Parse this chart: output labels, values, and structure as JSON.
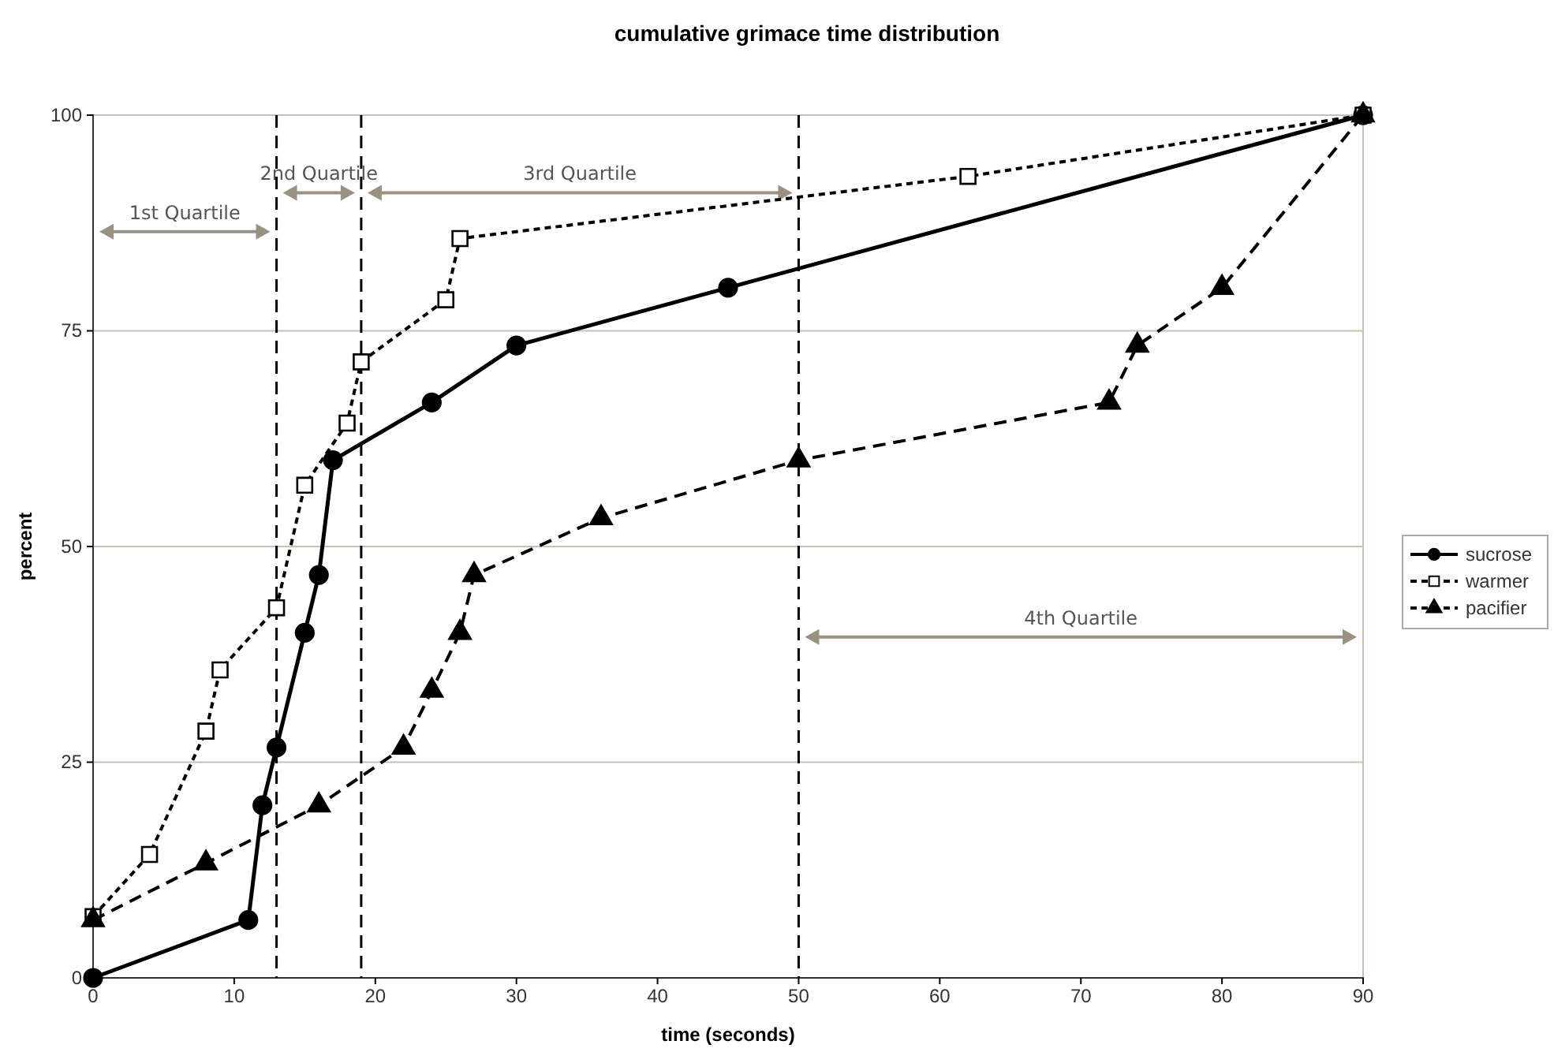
{
  "chart_data": {
    "type": "line",
    "title": "cumulative grimace time distribution",
    "xlabel": "time (seconds)",
    "ylabel": "percent",
    "xlim": [
      0,
      90
    ],
    "xticks": [
      0,
      10,
      20,
      30,
      40,
      50,
      60,
      70,
      80,
      90
    ],
    "ylim": [
      0,
      100
    ],
    "yticks": [
      0,
      25,
      50,
      75,
      100
    ],
    "grid": "y",
    "legend": "right",
    "series": [
      {
        "name": "sucrose",
        "color": "#000000",
        "marker": "circle",
        "line_style": "solid",
        "x": [
          0,
          11,
          12,
          13,
          15,
          16,
          17,
          24,
          30,
          45,
          90
        ],
        "values": [
          0,
          6.7,
          20,
          26.7,
          40,
          46.7,
          60,
          66.7,
          73.3,
          80,
          100
        ]
      },
      {
        "name": "warmer",
        "color": "#000000",
        "marker": "square",
        "line_style": "dotted",
        "x": [
          0,
          4,
          8,
          9,
          13,
          15,
          18,
          19,
          25,
          26,
          62,
          90
        ],
        "values": [
          7.1,
          14.3,
          28.6,
          35.7,
          42.9,
          57.1,
          64.3,
          71.4,
          78.6,
          85.7,
          92.9,
          100
        ]
      },
      {
        "name": "pacifier",
        "color": "#000000",
        "marker": "triangle",
        "line_style": "dashed",
        "x": [
          0,
          8,
          16,
          22,
          24,
          26,
          27,
          36,
          50,
          72,
          74,
          80,
          90
        ],
        "values": [
          6.7,
          13.3,
          20,
          26.7,
          33.3,
          40,
          46.7,
          53.3,
          60,
          66.7,
          73.3,
          80,
          100
        ]
      }
    ],
    "ref_lines": [
      {
        "axis": "x",
        "value": 13,
        "line_style": "dashed",
        "color": "#000000"
      },
      {
        "axis": "x",
        "value": 19,
        "line_style": "dashed",
        "color": "#000000"
      },
      {
        "axis": "x",
        "value": 50,
        "line_style": "dashed",
        "color": "#000000"
      }
    ],
    "annotations": [
      "1st Quartile",
      "2nd Quartile",
      "3rd Quartile",
      "4th Quartile"
    ]
  }
}
